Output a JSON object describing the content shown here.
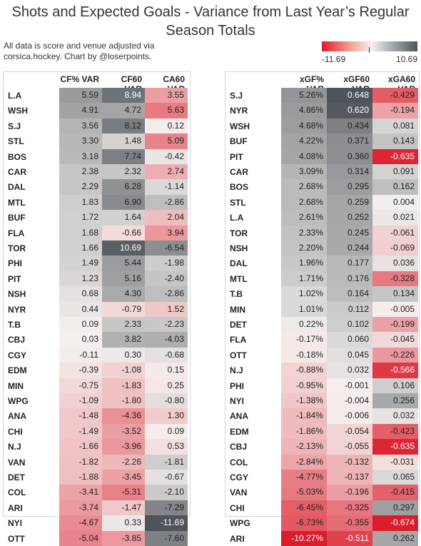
{
  "title": "Shots and Expected Goals - Variance from Last Year’s Regular Season Totals",
  "subtitle_line1": "All data is score and venue adjusted via",
  "subtitle_line2": "corsica.hockey. Chart by @loserpoints.",
  "legend": {
    "min_label": "-11.69",
    "max_label": "10.69",
    "min": -11.69,
    "max": 10.69,
    "colors": {
      "neg": "#dc1c2b",
      "mid": "#f5f1ef",
      "pos": "#4f545a"
    }
  },
  "chart_data": [
    {
      "type": "table",
      "columns": [
        "CF% VAR",
        "CF60 VAR",
        "CA60 VAR"
      ],
      "rows": [
        {
          "team": "L.A",
          "values": [
            "5.59",
            "8.94",
            "3.55"
          ]
        },
        {
          "team": "WSH",
          "values": [
            "4.91",
            "4.72",
            "5.63"
          ]
        },
        {
          "team": "S.J",
          "values": [
            "3.56",
            "8.12",
            "0.12"
          ]
        },
        {
          "team": "STL",
          "values": [
            "3.30",
            "1.48",
            "5.09"
          ]
        },
        {
          "team": "BOS",
          "values": [
            "3.18",
            "7.74",
            "-0.42"
          ]
        },
        {
          "team": "CAR",
          "values": [
            "2.38",
            "2.32",
            "2.74"
          ]
        },
        {
          "team": "DAL",
          "values": [
            "2.29",
            "6.28",
            "-1.14"
          ]
        },
        {
          "team": "MTL",
          "values": [
            "1.83",
            "6.90",
            "-2.86"
          ]
        },
        {
          "team": "BUF",
          "values": [
            "1.72",
            "1.64",
            "2.04"
          ]
        },
        {
          "team": "FLA",
          "values": [
            "1.68",
            "-0.66",
            "3.94"
          ]
        },
        {
          "team": "TOR",
          "values": [
            "1.66",
            "10.69",
            "-6.54"
          ]
        },
        {
          "team": "PHI",
          "values": [
            "1.49",
            "5.44",
            "-1.98"
          ]
        },
        {
          "team": "PIT",
          "values": [
            "1.23",
            "5.16",
            "-2.40"
          ]
        },
        {
          "team": "NSH",
          "values": [
            "0.68",
            "4.30",
            "-2.86"
          ]
        },
        {
          "team": "NYR",
          "values": [
            "0.44",
            "-0.79",
            "1.52"
          ]
        },
        {
          "team": "T.B",
          "values": [
            "0.09",
            "2.33",
            "-2.23"
          ]
        },
        {
          "team": "CBJ",
          "values": [
            "0.03",
            "3.82",
            "-4.03"
          ]
        },
        {
          "team": "CGY",
          "values": [
            "-0.11",
            "0.30",
            "-0.68"
          ]
        },
        {
          "team": "EDM",
          "values": [
            "-0.39",
            "-1.08",
            "0.15"
          ]
        },
        {
          "team": "MIN",
          "values": [
            "-0.75",
            "-1.83",
            "0.25"
          ]
        },
        {
          "team": "WPG",
          "values": [
            "-1.09",
            "-1.80",
            "-0.80"
          ]
        },
        {
          "team": "ANA",
          "values": [
            "-1.48",
            "-4.36",
            "1.30"
          ]
        },
        {
          "team": "CHI",
          "values": [
            "-1.49",
            "-3.52",
            "0.09"
          ]
        },
        {
          "team": "N.J",
          "values": [
            "-1.66",
            "-3.96",
            "0.53"
          ]
        },
        {
          "team": "VAN",
          "values": [
            "-1.82",
            "-2.26",
            "-1.81"
          ]
        },
        {
          "team": "DET",
          "values": [
            "-1.88",
            "-3.45",
            "-0.67"
          ]
        },
        {
          "team": "COL",
          "values": [
            "-3.41",
            "-5.31",
            "-2.10"
          ]
        },
        {
          "team": "ARI",
          "values": [
            "-3.74",
            "-1.47",
            "-7.29"
          ]
        },
        {
          "team": "NYI",
          "values": [
            "-4.67",
            "0.33",
            "-11.69"
          ]
        },
        {
          "team": "OTT",
          "values": [
            "-5.04",
            "-3.85",
            "-7.60"
          ]
        }
      ],
      "color_scale": [
        [
          -11.69,
          11.69
        ],
        [
          -11.69,
          11.69
        ],
        [
          11.69,
          -11.69
        ]
      ]
    },
    {
      "type": "table",
      "columns": [
        "xGF% VAR",
        "xGF60 VAR",
        "xGA60 VAR"
      ],
      "rows": [
        {
          "team": "S.J",
          "values": [
            "5.26%",
            "0.648",
            "-0.429"
          ]
        },
        {
          "team": "NYR",
          "values": [
            "4.86%",
            "0.620",
            "-0.194"
          ]
        },
        {
          "team": "WSH",
          "values": [
            "4.68%",
            "0.434",
            "0.081"
          ]
        },
        {
          "team": "BUF",
          "values": [
            "4.22%",
            "0.371",
            "0.143"
          ]
        },
        {
          "team": "PIT",
          "values": [
            "4.08%",
            "0.360",
            "-0.635"
          ]
        },
        {
          "team": "CAR",
          "values": [
            "3.09%",
            "0.314",
            "0.091"
          ]
        },
        {
          "team": "BOS",
          "values": [
            "2.68%",
            "0.295",
            "0.162"
          ]
        },
        {
          "team": "STL",
          "values": [
            "2.68%",
            "0.259",
            "0.004"
          ]
        },
        {
          "team": "L.A",
          "values": [
            "2.61%",
            "0.252",
            "0.021"
          ]
        },
        {
          "team": "TOR",
          "values": [
            "2.33%",
            "0.245",
            "-0.061"
          ]
        },
        {
          "team": "NSH",
          "values": [
            "2.20%",
            "0.244",
            "-0.069"
          ]
        },
        {
          "team": "DAL",
          "values": [
            "1.96%",
            "0.177",
            "0.036"
          ]
        },
        {
          "team": "MTL",
          "values": [
            "1.71%",
            "0.176",
            "-0.328"
          ]
        },
        {
          "team": "T.B",
          "values": [
            "1.02%",
            "0.164",
            "0.134"
          ]
        },
        {
          "team": "MIN",
          "values": [
            "1.01%",
            "0.112",
            "-0.005"
          ]
        },
        {
          "team": "DET",
          "values": [
            "0.22%",
            "0.102",
            "-0.199"
          ]
        },
        {
          "team": "FLA",
          "values": [
            "-0.17%",
            "0.060",
            "-0.045"
          ]
        },
        {
          "team": "OTT",
          "values": [
            "-0.18%",
            "0.045",
            "-0.226"
          ]
        },
        {
          "team": "N.J",
          "values": [
            "-0.88%",
            "0.032",
            "-0.566"
          ]
        },
        {
          "team": "PHI",
          "values": [
            "-0.95%",
            "-0.001",
            "0.106"
          ]
        },
        {
          "team": "NYI",
          "values": [
            "-1.38%",
            "-0.004",
            "0.256"
          ]
        },
        {
          "team": "ANA",
          "values": [
            "-1.84%",
            "-0.006",
            "0.032"
          ]
        },
        {
          "team": "EDM",
          "values": [
            "-1.86%",
            "-0.054",
            "-0.423"
          ]
        },
        {
          "team": "CBJ",
          "values": [
            "-2.13%",
            "-0.055",
            "-0.635"
          ]
        },
        {
          "team": "COL",
          "values": [
            "-2.84%",
            "-0.132",
            "-0.031"
          ]
        },
        {
          "team": "CGY",
          "values": [
            "-4.77%",
            "-0.137",
            "0.065"
          ]
        },
        {
          "team": "VAN",
          "values": [
            "-5.03%",
            "-0.196",
            "-0.415"
          ]
        },
        {
          "team": "CHI",
          "values": [
            "-6.45%",
            "-0.325",
            "0.297"
          ]
        },
        {
          "team": "WPG",
          "values": [
            "-6.73%",
            "-0.355",
            "-0.674"
          ]
        },
        {
          "team": "ARI",
          "values": [
            "-10.27%",
            "-0.511",
            "0.262"
          ]
        }
      ],
      "color_scale": [
        [
          -10.27,
          10.27
        ],
        [
          -0.648,
          0.648
        ],
        [
          -0.674,
          0.674
        ]
      ]
    }
  ]
}
